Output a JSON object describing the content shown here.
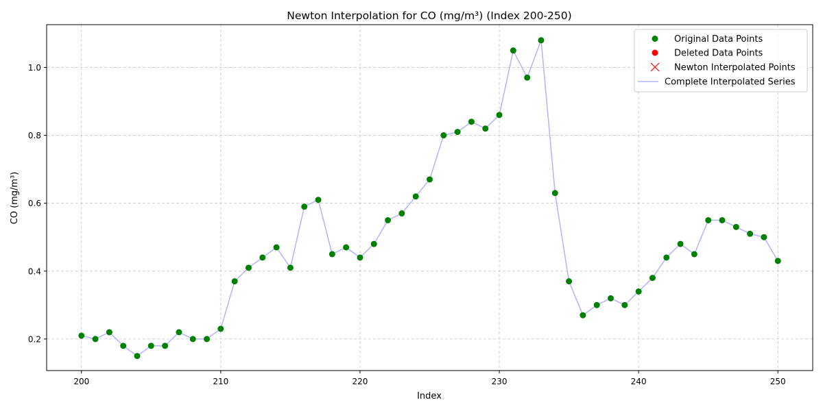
{
  "chart_data": {
    "type": "line",
    "title": "Newton Interpolation for CO (mg/m³) (Index 200-250)",
    "xlabel": "Index",
    "ylabel": "CO (mg/m³)",
    "xlim": [
      197.5,
      252.5
    ],
    "ylim": [
      0.107,
      1.126
    ],
    "xticks": [
      200,
      210,
      220,
      230,
      240,
      250
    ],
    "yticks": [
      0.2,
      0.4,
      0.6,
      0.8,
      1.0
    ],
    "xtick_labels": [
      "200",
      "210",
      "220",
      "230",
      "240",
      "250"
    ],
    "ytick_labels": [
      "0.2",
      "0.4",
      "0.6",
      "0.8",
      "1.0"
    ],
    "grid": true,
    "legend_position": "top-right",
    "legend": [
      {
        "label": "Original Data Points",
        "marker": "circle",
        "color": "#008000"
      },
      {
        "label": "Deleted Data Points",
        "marker": "circle",
        "color": "#ff0000"
      },
      {
        "label": "Newton Interpolated Points",
        "marker": "x",
        "color": "#ff0000"
      },
      {
        "label": "Complete Interpolated Series",
        "marker": "line",
        "color": "#b3b3ff"
      }
    ],
    "x": [
      200,
      201,
      202,
      203,
      204,
      205,
      206,
      207,
      208,
      209,
      210,
      211,
      212,
      213,
      214,
      215,
      216,
      217,
      218,
      219,
      220,
      221,
      222,
      223,
      224,
      225,
      226,
      227,
      228,
      229,
      230,
      231,
      232,
      233,
      234,
      235,
      236,
      237,
      238,
      239,
      240,
      241,
      242,
      243,
      244,
      245,
      246,
      247,
      248,
      249,
      250
    ],
    "series": [
      {
        "name": "Original Data Points",
        "style": "markers",
        "color": "#008000",
        "values": [
          0.21,
          0.2,
          0.22,
          0.18,
          0.15,
          0.18,
          0.18,
          0.22,
          0.2,
          0.2,
          0.23,
          0.37,
          0.41,
          0.44,
          0.47,
          0.41,
          0.59,
          0.61,
          0.45,
          0.47,
          0.44,
          0.48,
          0.55,
          0.57,
          0.62,
          0.67,
          0.8,
          0.81,
          0.84,
          0.82,
          0.86,
          1.05,
          0.97,
          1.08,
          0.63,
          0.37,
          0.27,
          0.3,
          0.32,
          0.3,
          0.34,
          0.38,
          0.44,
          0.48,
          0.45,
          0.55,
          0.55,
          0.53,
          0.51,
          0.5,
          0.43
        ]
      },
      {
        "name": "Complete Interpolated Series",
        "style": "line",
        "color": "#b3b3ff",
        "values": [
          0.21,
          0.2,
          0.22,
          0.18,
          0.15,
          0.18,
          0.18,
          0.22,
          0.2,
          0.2,
          0.23,
          0.37,
          0.41,
          0.44,
          0.47,
          0.41,
          0.59,
          0.61,
          0.45,
          0.47,
          0.44,
          0.48,
          0.55,
          0.57,
          0.62,
          0.67,
          0.8,
          0.81,
          0.84,
          0.82,
          0.86,
          1.05,
          0.97,
          1.08,
          0.63,
          0.37,
          0.27,
          0.3,
          0.32,
          0.3,
          0.34,
          0.38,
          0.44,
          0.48,
          0.45,
          0.55,
          0.55,
          0.53,
          0.51,
          0.5,
          0.43
        ]
      }
    ]
  }
}
